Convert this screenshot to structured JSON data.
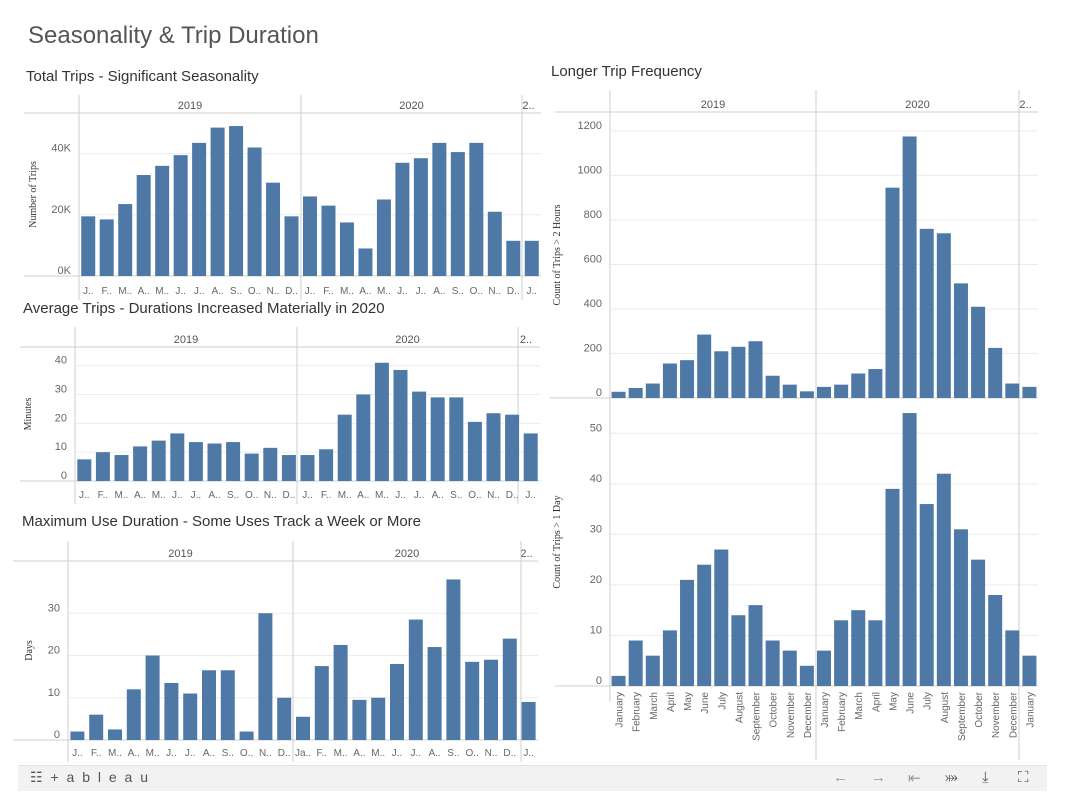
{
  "dashboard": {
    "title": "Seasonality & Trip Duration"
  },
  "colors": {
    "bar": "#4e79a7",
    "grid": "#ececec",
    "divider": "#cfcfcf"
  },
  "charts": [
    {
      "id": "total",
      "title": "Total Trips - Significant Seasonality",
      "ylabel": "Number of Trips",
      "yticks": [
        "0K",
        "20K",
        "40K"
      ],
      "tickvals": [
        0,
        20000,
        40000
      ],
      "ymax": 50000,
      "years": [
        "2019",
        "2020",
        "2.."
      ],
      "xlabels": [
        "J..",
        "F..",
        "M..",
        "A..",
        "M..",
        "J..",
        "J..",
        "A..",
        "S..",
        "O..",
        "N..",
        "D..",
        "J..",
        "F..",
        "M..",
        "A..",
        "M..",
        "J..",
        "J..",
        "A..",
        "S..",
        "O..",
        "N..",
        "D..",
        "J.."
      ],
      "values": [
        19500,
        18500,
        23500,
        33000,
        36000,
        39500,
        43500,
        48500,
        49000,
        42000,
        30500,
        19500,
        26000,
        23000,
        17500,
        9000,
        25000,
        37000,
        38500,
        43500,
        40500,
        43500,
        21000,
        11500,
        11500
      ]
    },
    {
      "id": "avg",
      "title": "Average Trips - Durations Increased Materially in 2020",
      "ylabel": "Minutes",
      "yticks": [
        "0",
        "10",
        "20",
        "30",
        "40"
      ],
      "tickvals": [
        0,
        10,
        20,
        30,
        40
      ],
      "ymax": 43,
      "years": [
        "2019",
        "2020",
        "2.."
      ],
      "xlabels": [
        "J..",
        "F..",
        "M..",
        "A..",
        "M..",
        "J..",
        "J..",
        "A..",
        "S..",
        "O..",
        "N..",
        "D..",
        "J..",
        "F..",
        "M..",
        "A..",
        "M..",
        "J..",
        "J..",
        "A..",
        "S..",
        "O..",
        "N..",
        "D..",
        "J.."
      ],
      "values": [
        7.5,
        10,
        9,
        12,
        14,
        16.5,
        13.5,
        13,
        13.5,
        9.5,
        11.5,
        9,
        9,
        11,
        23,
        30,
        41,
        38.5,
        31,
        29,
        29,
        20.5,
        23.5,
        23,
        16.5
      ]
    },
    {
      "id": "max",
      "title": "Maximum Use Duration - Some Uses Track a Week or More",
      "ylabel": "Days",
      "yticks": [
        "0",
        "10",
        "20",
        "30"
      ],
      "tickvals": [
        0,
        10,
        20,
        30
      ],
      "ymax": 40,
      "years": [
        "2019",
        "2020",
        "2.."
      ],
      "xlabels": [
        "J..",
        "F..",
        "M..",
        "A..",
        "M..",
        "J..",
        "J..",
        "A..",
        "S..",
        "O..",
        "N..",
        "D..",
        "Ja..",
        "F..",
        "M..",
        "A..",
        "M..",
        "J..",
        "J..",
        "A..",
        "S..",
        "O..",
        "N..",
        "D..",
        "J.."
      ],
      "values": [
        2,
        6,
        2.5,
        12,
        20,
        13.5,
        11,
        16.5,
        16.5,
        2,
        30,
        10,
        5.5,
        17.5,
        22.5,
        9.5,
        10,
        18,
        28.5,
        22,
        38,
        18.5,
        19,
        24,
        9
      ]
    },
    {
      "id": "long2h",
      "title": "Longer Trip Frequency",
      "ylabel": "Count of Trips > 2 Hours",
      "yticks": [
        "0",
        "200",
        "400",
        "600",
        "800",
        "1000",
        "1200"
      ],
      "tickvals": [
        0,
        200,
        400,
        600,
        800,
        1000,
        1200
      ],
      "ymax": 1240,
      "years": [
        "2019",
        "2020",
        "2.."
      ],
      "xlabels": [],
      "values": [
        28,
        45,
        65,
        155,
        170,
        285,
        210,
        230,
        255,
        100,
        60,
        30,
        50,
        60,
        110,
        130,
        945,
        1175,
        760,
        740,
        515,
        410,
        225,
        65,
        50
      ]
    },
    {
      "id": "long1d",
      "title": "",
      "ylabel": "Count of Trips > 1 Day",
      "yticks": [
        "0",
        "10",
        "20",
        "30",
        "40",
        "50"
      ],
      "tickvals": [
        0,
        10,
        20,
        30,
        40,
        50
      ],
      "ymax": 55,
      "years": [],
      "xlabels": [
        "January",
        "February",
        "March",
        "April",
        "May",
        "June",
        "July",
        "August",
        "September",
        "October",
        "November",
        "December",
        "January",
        "February",
        "March",
        "April",
        "May",
        "June",
        "July",
        "August",
        "September",
        "October",
        "November",
        "December",
        "January"
      ],
      "values": [
        2,
        9,
        6,
        11,
        21,
        24,
        27,
        14,
        16,
        9,
        7,
        4,
        7,
        13,
        15,
        13,
        39,
        54,
        36,
        42,
        31,
        25,
        18,
        11,
        6
      ]
    }
  ],
  "toolbar": {
    "logo": "+ a b l e a u",
    "undo_icon": "←",
    "redo_icon": "→",
    "revert_icon": "⇤",
    "share_icon": "⤗",
    "download_icon": "⤓",
    "fullscreen_icon": "⛶"
  }
}
